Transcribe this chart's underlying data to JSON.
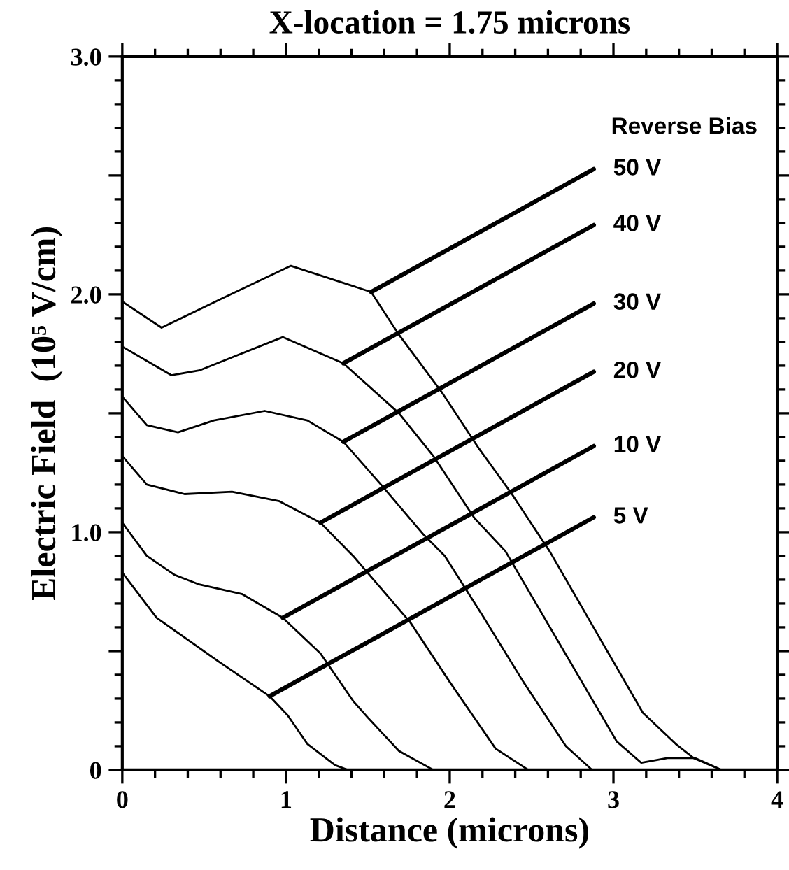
{
  "chart_data": {
    "type": "line",
    "title": "X-location = 1.75 microns",
    "xlabel": "Distance (microns)",
    "ylabel": "Electric Field  (10⁵ V/cm)",
    "xlim": [
      0,
      4
    ],
    "ylim": [
      0,
      3.0
    ],
    "xticks": [
      0,
      1,
      2,
      3,
      4
    ],
    "yticks": [
      {
        "value": 0,
        "label": "0"
      },
      {
        "value": 0.5,
        "label": null
      },
      {
        "value": 1.0,
        "label": "1.0"
      },
      {
        "value": 1.5,
        "label": null
      },
      {
        "value": 2.0,
        "label": "2.0"
      },
      {
        "value": 2.5,
        "label": null
      },
      {
        "value": 3.0,
        "label": "3.0"
      }
    ],
    "grid": false,
    "legend": false,
    "marker": "none",
    "line_style": "solid",
    "series": [
      {
        "color": "#000000",
        "x": [
          0,
          0.21,
          0.58,
          0.9,
          1.01,
          1.13,
          1.3,
          1.38,
          1.41
        ],
        "values": [
          0.83,
          0.64,
          0.46,
          0.31,
          0.23,
          0.11,
          0.02,
          0,
          0
        ]
      },
      {
        "color": "#000000",
        "x": [
          0,
          0.15,
          0.32,
          0.47,
          0.73,
          0.98,
          1.21,
          1.41,
          1.5,
          1.69,
          1.9,
          2.1
        ],
        "values": [
          1.04,
          0.9,
          0.82,
          0.78,
          0.74,
          0.64,
          0.49,
          0.29,
          0.22,
          0.08,
          0,
          0
        ]
      },
      {
        "color": "#000000",
        "x": [
          0,
          0.15,
          0.38,
          0.67,
          0.96,
          1.21,
          1.41,
          1.76,
          2.0,
          2.28,
          2.48,
          2.68
        ],
        "values": [
          1.32,
          1.2,
          1.16,
          1.17,
          1.13,
          1.04,
          0.9,
          0.62,
          0.37,
          0.09,
          0,
          0
        ]
      },
      {
        "color": "#000000",
        "x": [
          0,
          0.15,
          0.34,
          0.56,
          0.87,
          1.13,
          1.35,
          1.58,
          1.84,
          1.97,
          2.2,
          2.45,
          2.71,
          2.87,
          3.05
        ],
        "values": [
          1.57,
          1.45,
          1.42,
          1.47,
          1.51,
          1.47,
          1.38,
          1.2,
          0.99,
          0.9,
          0.65,
          0.37,
          0.1,
          0,
          0
        ]
      },
      {
        "color": "#000000",
        "x": [
          0,
          0.3,
          0.47,
          0.98,
          1.35,
          1.69,
          1.9,
          2.15,
          2.34,
          3.02,
          3.17,
          3.33,
          3.5,
          3.66
        ],
        "values": [
          1.78,
          1.66,
          1.68,
          1.82,
          1.71,
          1.5,
          1.32,
          1.06,
          0.92,
          0.12,
          0.03,
          0.05,
          0.05,
          0
        ]
      },
      {
        "color": "#000000",
        "x": [
          0,
          0.24,
          0.6,
          1.03,
          1.52,
          1.69,
          1.95,
          2.18,
          2.38,
          2.61,
          3.18,
          3.38,
          3.49,
          3.66
        ],
        "values": [
          1.97,
          1.86,
          1.98,
          2.12,
          2.01,
          1.83,
          1.59,
          1.35,
          1.16,
          0.92,
          0.24,
          0.11,
          0.05,
          0
        ]
      }
    ],
    "annotations": [
      "Reverse Bias",
      {
        "text": "5 V",
        "x": 0.9,
        "y": 0.31
      },
      {
        "text": "10 V",
        "x": 0.98,
        "y": 0.64
      },
      {
        "text": "20 V",
        "x": 1.21,
        "y": 1.04
      },
      {
        "text": "30 V",
        "x": 1.35,
        "y": 1.38
      },
      {
        "text": "40 V",
        "x": 1.35,
        "y": 1.71
      },
      {
        "text": "50 V",
        "x": 1.52,
        "y": 2.01
      }
    ]
  }
}
